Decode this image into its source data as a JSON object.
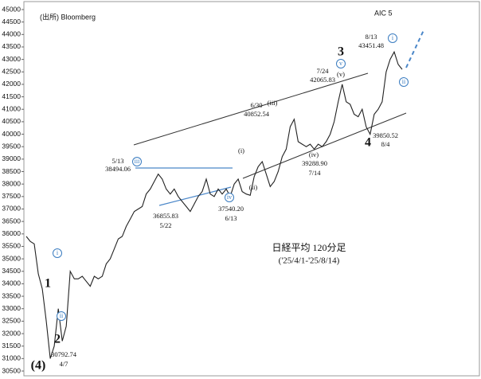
{
  "chart_data": {
    "type": "line",
    "color": "#222",
    "title": "日経平均 120分足",
    "subtitle": "('25/4/1-'25/8/14)",
    "ylim": [
      30500,
      45000
    ],
    "yticks": [
      30500,
      31000,
      31500,
      32000,
      32500,
      33000,
      33500,
      34000,
      34500,
      35000,
      35500,
      36000,
      36500,
      37000,
      37500,
      38000,
      38500,
      39000,
      39500,
      40000,
      40500,
      41000,
      41500,
      42000,
      42500,
      43000,
      43500,
      44000,
      44500,
      45000
    ],
    "values": [
      35900,
      35700,
      35600,
      34400,
      33800,
      32500,
      31000,
      31500,
      33000,
      31700,
      32300,
      34500,
      34200,
      34200,
      34300,
      34100,
      33900,
      34300,
      34200,
      34300,
      34800,
      35000,
      35400,
      35800,
      35900,
      36300,
      36600,
      36900,
      37000,
      37100,
      37600,
      37800,
      38100,
      38400,
      38200,
      37800,
      37600,
      37800,
      37500,
      37300,
      37100,
      36900,
      37200,
      37500,
      37700,
      38200,
      37600,
      37500,
      37800,
      37600,
      37800,
      37500,
      38000,
      38200,
      37700,
      37600,
      37550,
      38300,
      38700,
      38900,
      38400,
      37900,
      38100,
      38500,
      39100,
      39400,
      40300,
      40600,
      39700,
      39600,
      39500,
      39600,
      39400,
      39600,
      39500,
      39700,
      40000,
      40500,
      41300,
      42000,
      41300,
      41200,
      40800,
      40700,
      41000,
      40300,
      40000,
      40800,
      41000,
      41300,
      42500,
      43000,
      43300,
      42800,
      42600
    ],
    "annotations": [
      "(出所) Bloomberg",
      "AIC 5",
      "3",
      "4",
      "1",
      "2",
      "(4)",
      "i",
      "ii",
      "iii",
      "iv",
      "v",
      "i",
      "ii",
      "(iii)",
      "(v)",
      "(iv)",
      "(ii)",
      "(i)",
      "5/13",
      "38494.06",
      "36855.83",
      "5/22",
      "37540.20",
      "6/13",
      "6/30",
      "40852.54",
      "7/24",
      "42065.83",
      "8/13",
      "43451.48",
      "39288.90",
      "7/14",
      "39850.52",
      "8/4",
      "30792.74",
      "4/7"
    ]
  }
}
